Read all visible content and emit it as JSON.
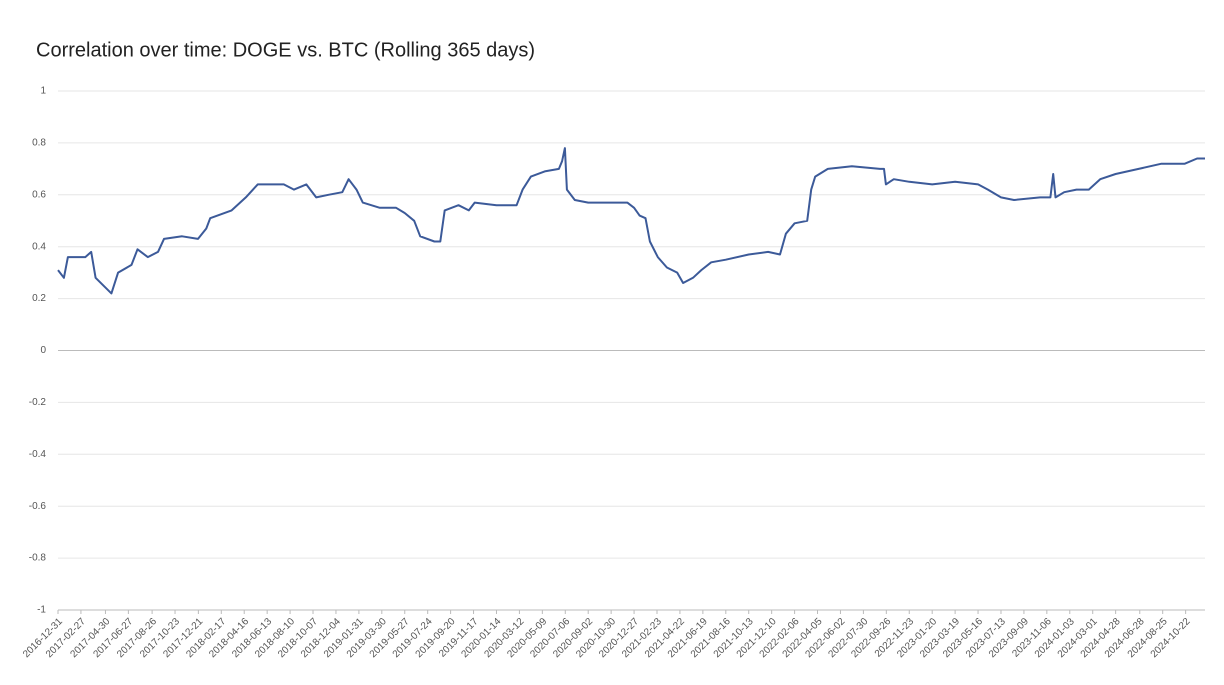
{
  "chart_data": {
    "type": "line",
    "title": "Correlation over time: DOGE vs. BTC (Rolling 365 days)",
    "x": [
      "2016-12-31",
      "2017-01-15",
      "2017-01-25",
      "2017-03-10",
      "2017-03-25",
      "2017-04-05",
      "2017-05-15",
      "2017-06-01",
      "2017-07-05",
      "2017-07-20",
      "2017-08-15",
      "2017-09-10",
      "2017-09-25",
      "2017-11-10",
      "2017-12-20",
      "2018-01-10",
      "2018-01-20",
      "2018-03-15",
      "2018-04-20",
      "2018-05-20",
      "2018-07-25",
      "2018-08-20",
      "2018-09-20",
      "2018-10-15",
      "2018-11-15",
      "2018-12-20",
      "2019-01-05",
      "2019-01-25",
      "2019-02-10",
      "2019-03-25",
      "2019-05-05",
      "2019-05-27",
      "2019-06-20",
      "2019-07-05",
      "2019-08-10",
      "2019-08-25",
      "2019-09-05",
      "2019-10-10",
      "2019-11-05",
      "2019-11-20",
      "2020-01-14",
      "2020-03-05",
      "2020-03-20",
      "2020-04-10",
      "2020-05-15",
      "2020-06-20",
      "2020-06-28",
      "2020-07-05",
      "2020-07-10",
      "2020-07-30",
      "2020-09-02",
      "2020-12-10",
      "2020-12-27",
      "2021-01-10",
      "2021-01-25",
      "2021-02-05",
      "2021-02-25",
      "2021-03-20",
      "2021-04-15",
      "2021-04-30",
      "2021-05-25",
      "2021-06-15",
      "2021-07-10",
      "2021-08-16",
      "2021-10-13",
      "2021-12-01",
      "2021-12-31",
      "2022-01-15",
      "2022-02-06",
      "2022-03-10",
      "2022-03-20",
      "2022-03-30",
      "2022-05-01",
      "2022-07-01",
      "2022-09-10",
      "2022-09-20",
      "2022-09-25",
      "2022-10-15",
      "2022-11-23",
      "2023-01-20",
      "2023-03-19",
      "2023-05-16",
      "2023-06-10",
      "2023-07-13",
      "2023-08-15",
      "2023-10-20",
      "2023-11-15",
      "2023-11-22",
      "2023-11-28",
      "2023-12-20",
      "2024-01-20",
      "2024-02-20",
      "2024-03-20",
      "2024-04-28",
      "2024-06-25",
      "2024-08-22",
      "2024-10-20",
      "2024-11-20",
      "2024-12-10"
    ],
    "series": [
      {
        "name": "Correlation",
        "color": "#3c5a99",
        "values": [
          0.31,
          0.28,
          0.36,
          0.36,
          0.38,
          0.28,
          0.22,
          0.3,
          0.33,
          0.39,
          0.36,
          0.38,
          0.43,
          0.44,
          0.43,
          0.47,
          0.51,
          0.54,
          0.59,
          0.64,
          0.64,
          0.62,
          0.64,
          0.59,
          0.6,
          0.61,
          0.66,
          0.62,
          0.57,
          0.55,
          0.55,
          0.53,
          0.5,
          0.44,
          0.42,
          0.42,
          0.54,
          0.56,
          0.54,
          0.57,
          0.56,
          0.56,
          0.62,
          0.67,
          0.69,
          0.7,
          0.73,
          0.78,
          0.62,
          0.58,
          0.57,
          0.57,
          0.55,
          0.52,
          0.51,
          0.42,
          0.36,
          0.32,
          0.3,
          0.26,
          0.28,
          0.31,
          0.34,
          0.35,
          0.37,
          0.38,
          0.37,
          0.45,
          0.49,
          0.5,
          0.62,
          0.67,
          0.7,
          0.71,
          0.7,
          0.7,
          0.64,
          0.66,
          0.65,
          0.64,
          0.65,
          0.64,
          0.62,
          0.59,
          0.58,
          0.59,
          0.59,
          0.68,
          0.59,
          0.61,
          0.62,
          0.62,
          0.66,
          0.68,
          0.7,
          0.72,
          0.72,
          0.74,
          0.74
        ]
      }
    ],
    "xlim": [
      "2016-12-31",
      "2024-12-10"
    ],
    "xticks": [
      "2016-12-31",
      "2017-02-27",
      "2017-04-30",
      "2017-06-27",
      "2017-08-26",
      "2017-10-23",
      "2017-12-21",
      "2018-02-17",
      "2018-04-16",
      "2018-06-13",
      "2018-08-10",
      "2018-10-07",
      "2018-12-04",
      "2019-01-31",
      "2019-03-30",
      "2019-05-27",
      "2019-07-24",
      "2019-09-20",
      "2019-11-17",
      "2020-01-14",
      "2020-03-12",
      "2020-05-09",
      "2020-07-06",
      "2020-09-02",
      "2020-10-30",
      "2020-12-27",
      "2021-02-23",
      "2021-04-22",
      "2021-06-19",
      "2021-08-16",
      "2021-10-13",
      "2021-12-10",
      "2022-02-06",
      "2022-04-05",
      "2022-06-02",
      "2022-07-30",
      "2022-09-26",
      "2022-11-23",
      "2023-01-20",
      "2023-03-19",
      "2023-05-16",
      "2023-07-13",
      "2023-09-09",
      "2023-11-06",
      "2024-01-03",
      "2024-03-01",
      "2024-04-28",
      "2024-06-28",
      "2024-08-25",
      "2024-10-22"
    ],
    "ylim": [
      -1,
      1
    ],
    "yticks": [
      -1,
      -0.8,
      -0.6,
      -0.4,
      -0.2,
      0,
      0.2,
      0.4,
      0.6,
      0.8,
      1
    ],
    "grid": true
  }
}
